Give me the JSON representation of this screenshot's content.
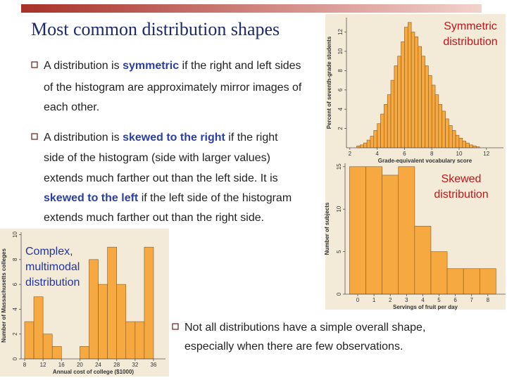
{
  "header": {
    "title": "Most common distribution shapes"
  },
  "bullets": [
    {
      "lines": [
        [
          {
            "text": "A distribution is "
          },
          {
            "text": "symmetric",
            "em": true
          },
          {
            "text": " if the right and left sides"
          }
        ],
        [
          {
            "text": "of the histogram are approximately mirror images of"
          }
        ],
        [
          {
            "text": "each other."
          }
        ]
      ]
    },
    {
      "lines": [
        [
          {
            "text": "A distribution is "
          },
          {
            "text": "skewed to the right",
            "em": true
          },
          {
            "text": " if the right"
          }
        ],
        [
          {
            "text": "side of the histogram (side with larger values)"
          }
        ],
        [
          {
            "text": "extends much farther out than the left side. It is"
          }
        ],
        [
          {
            "text": "skewed to the left",
            "em": true
          },
          {
            "text": " if the left side of the histogram"
          }
        ],
        [
          {
            "text": "extends much farther out than the right side."
          }
        ]
      ]
    },
    {
      "lines": [
        [
          {
            "text": "Not all distributions have a simple overall shape,"
          }
        ],
        [
          {
            "text": "especially when there are few observations."
          }
        ]
      ]
    }
  ],
  "histograms": [
    {
      "type": "histogram",
      "label": [
        "Symmetric",
        "distribution"
      ],
      "xlabel": "Grade-equivalent vocabulary score",
      "ylabel": "Percent of seventh-grade students",
      "bins": [
        2.5,
        2.75,
        3,
        3.25,
        3.5,
        3.75,
        4,
        4.25,
        4.5,
        4.75,
        5,
        5.25,
        5.5,
        5.75,
        6,
        6.25,
        6.5,
        6.75,
        7,
        7.25,
        7.5,
        7.75,
        8,
        8.25,
        8.5,
        8.75,
        9,
        9.25,
        9.5,
        9.75,
        10,
        10.25,
        10.5,
        10.75,
        11,
        11.25,
        11.5
      ],
      "values": [
        0.2,
        0.3,
        0.5,
        0.8,
        1.2,
        1.8,
        2.5,
        3.5,
        4.5,
        5.5,
        7,
        8.5,
        9.5,
        11,
        12.5,
        13,
        12,
        11.5,
        10.5,
        9.5,
        8.5,
        7.5,
        6.5,
        5.5,
        4.5,
        3.8,
        3,
        2.3,
        1.8,
        1.3,
        1,
        0.7,
        0.5,
        0.3,
        0.2,
        0.1
      ],
      "color": "#f7a941",
      "xlim": [
        1.75,
        13.25
      ],
      "ylim": [
        0,
        13.5
      ],
      "xticks": [
        2,
        4,
        6,
        8,
        10,
        12
      ],
      "yticks": [
        2,
        4,
        6,
        8,
        10,
        12
      ]
    },
    {
      "type": "bar",
      "label": [
        "Skewed",
        "distribution"
      ],
      "xlabel": "Servings of fruit per day",
      "ylabel": "Number of subjects",
      "x": [
        0,
        1,
        2,
        3,
        4,
        5,
        6,
        7,
        8
      ],
      "values": [
        15,
        15,
        14,
        15,
        8,
        5,
        3,
        3,
        3
      ],
      "color": "#f7a941",
      "xlim": [
        -0.78,
        9.09
      ],
      "ylim": [
        0,
        15.4
      ],
      "xticks": [
        0,
        1,
        2,
        3,
        4,
        5,
        6,
        7,
        8
      ],
      "yticks": [
        0,
        5,
        10,
        15
      ]
    },
    {
      "type": "histogram",
      "label": [
        "Complex,",
        "multimodal",
        "distribution"
      ],
      "xlabel": "Annual cost of college ($1000)",
      "ylabel": "Number of Massachusetts colleges",
      "bins": [
        8,
        10,
        12,
        14,
        16,
        18,
        20,
        22,
        24,
        26,
        28,
        30,
        32,
        34,
        36
      ],
      "values": [
        3,
        5,
        2,
        1,
        0,
        0,
        1,
        8,
        6,
        9,
        6,
        3,
        3,
        9
      ],
      "color": "#f7a941",
      "xlim": [
        7.24,
        38.6
      ],
      "ylim": [
        0,
        10.2
      ],
      "xticks": [
        8,
        12,
        16,
        20,
        24,
        28,
        32,
        36
      ],
      "yticks": [
        0,
        2,
        4,
        6,
        8,
        10
      ]
    }
  ]
}
